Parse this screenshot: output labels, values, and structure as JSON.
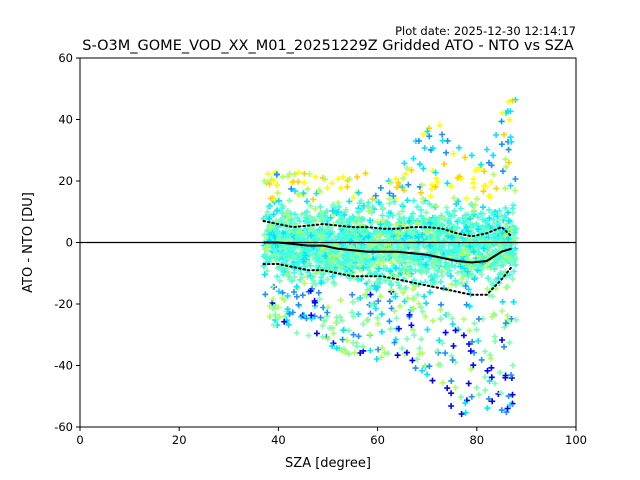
{
  "plot_date": "Plot date: 2025-12-30 12:14:17",
  "chart_data": {
    "type": "scatter",
    "title": "S-O3M_GOME_VOD_XX_M01_20251229Z Gridded ATO - NTO vs SZA",
    "xlabel": "SZA [degree]",
    "ylabel": "ATO - NTO [DU]",
    "xlim": [
      0,
      100
    ],
    "ylim": [
      -60,
      60
    ],
    "xticks": [
      "0",
      "20",
      "40",
      "60",
      "80",
      "100"
    ],
    "yticks": [
      "60",
      "40",
      "20",
      "0",
      "-20",
      "-40",
      "-60"
    ],
    "zero_line": 0,
    "colors": {
      "blue": "#0000ff",
      "dodger": "#1e90ff",
      "cyan": "#00e5ff",
      "aqua": "#40ffe0",
      "mint": "#80ffb0",
      "lime": "#b0ff60",
      "yellow": "#ffff00",
      "gold": "#ffd000",
      "orange": "#ffa500",
      "mean_line": "#000000"
    },
    "scatter_envelope": {
      "sza": [
        37,
        40,
        45,
        50,
        55,
        60,
        65,
        70,
        75,
        80,
        85,
        88
      ],
      "upper": [
        22,
        24,
        24,
        22,
        24,
        23,
        26,
        40,
        38,
        30,
        45,
        50
      ],
      "lower": [
        -25,
        -28,
        -30,
        -33,
        -38,
        -38,
        -37,
        -45,
        -55,
        -58,
        -55,
        -60
      ]
    },
    "series": [
      {
        "name": "mean",
        "x": [
          37,
          40,
          43,
          46,
          49,
          52,
          55,
          58,
          61,
          64,
          67,
          70,
          73,
          76,
          79,
          82,
          85,
          87
        ],
        "y": [
          0,
          0,
          -0.5,
          -1,
          -1,
          -2,
          -2.5,
          -3,
          -3,
          -3,
          -3.5,
          -4,
          -5,
          -6,
          -6.5,
          -6,
          -3,
          -2
        ]
      },
      {
        "name": "mean + std",
        "x": [
          37,
          40,
          43,
          46,
          49,
          52,
          55,
          58,
          61,
          64,
          67,
          70,
          73,
          76,
          79,
          82,
          85,
          87
        ],
        "y": [
          7,
          6,
          5,
          5.5,
          6,
          5.5,
          5,
          5,
          4.5,
          4.5,
          5,
          5,
          4.5,
          3,
          2,
          3,
          5,
          2
        ]
      },
      {
        "name": "mean - std",
        "x": [
          37,
          40,
          43,
          46,
          49,
          52,
          55,
          58,
          61,
          64,
          67,
          70,
          73,
          76,
          79,
          82,
          85,
          87
        ],
        "y": [
          -7,
          -7,
          -8,
          -9,
          -9,
          -10,
          -11,
          -11,
          -11,
          -12,
          -13,
          -14,
          -15,
          -16,
          -17,
          -17,
          -12,
          -8
        ]
      }
    ]
  }
}
